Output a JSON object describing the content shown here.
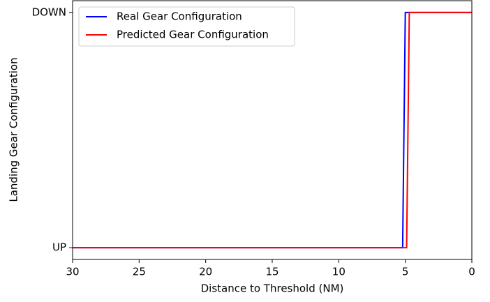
{
  "chart_data": {
    "type": "line",
    "xlabel": "Distance to Threshold (NM)",
    "ylabel": "Landing Gear Configuration",
    "xlim": [
      30,
      0
    ],
    "xticks": [
      30,
      25,
      20,
      15,
      10,
      5,
      0
    ],
    "ylim": [
      -0.05,
      1.05
    ],
    "yticks": [
      {
        "value": 0,
        "label": "UP"
      },
      {
        "value": 1,
        "label": "DOWN"
      }
    ],
    "grid": false,
    "legend": "upper left",
    "series": [
      {
        "name": "Real Gear Configuration",
        "color": "#0000ff",
        "x": [
          30,
          5.2,
          5.0,
          0
        ],
        "values": [
          0,
          0,
          1,
          1
        ]
      },
      {
        "name": "Predicted Gear Configuration",
        "color": "#ff0000",
        "x": [
          30,
          4.9,
          4.7,
          0
        ],
        "values": [
          0,
          0,
          1,
          1
        ]
      }
    ]
  }
}
